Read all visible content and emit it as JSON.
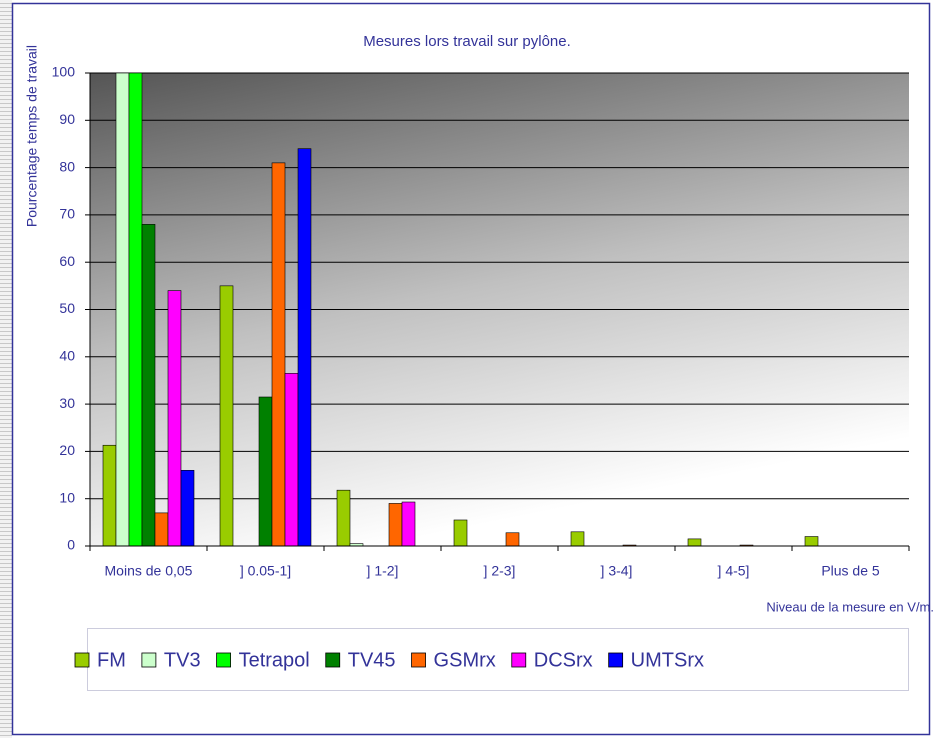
{
  "chart_data": {
    "type": "bar",
    "title": "Mesures lors travail sur pylône.",
    "y_label": "Pourcentage temps de travail",
    "x_label": "Niveau de la mesure en V/m.",
    "categories": [
      "Moins de 0,05",
      "] 0.05-1]",
      "] 1-2]",
      "] 2-3]",
      "] 3-4]",
      "] 4-5]",
      "Plus de 5"
    ],
    "series": [
      {
        "name": "FM",
        "color": "#99cc00",
        "values": [
          21.3,
          55,
          11.8,
          5.5,
          3,
          1.5,
          2
        ]
      },
      {
        "name": "TV3",
        "color": "#ccffcc",
        "values": [
          100,
          0,
          0.5,
          0,
          0,
          0,
          0
        ]
      },
      {
        "name": "Tetrapol",
        "color": "#00ff00",
        "values": [
          100,
          0,
          0,
          0,
          0,
          0,
          0
        ]
      },
      {
        "name": "TV45",
        "color": "#008000",
        "values": [
          68,
          31.5,
          0,
          0,
          0,
          0,
          0
        ]
      },
      {
        "name": "GSMrx",
        "color": "#ff6600",
        "values": [
          7,
          81,
          9,
          2.8,
          0.2,
          0.2,
          0
        ]
      },
      {
        "name": "DCSrx",
        "color": "#ff00ff",
        "values": [
          54,
          36.5,
          9.3,
          0,
          0,
          0,
          0
        ]
      },
      {
        "name": "UMTSrx",
        "color": "#0000ff",
        "values": [
          16,
          84,
          0,
          0,
          0,
          0,
          0
        ]
      }
    ],
    "ylim": [
      0,
      100
    ],
    "yticks": [
      0,
      10,
      20,
      30,
      40,
      50,
      60,
      70,
      80,
      90,
      100
    ],
    "grid": true,
    "legend": "bottom"
  }
}
